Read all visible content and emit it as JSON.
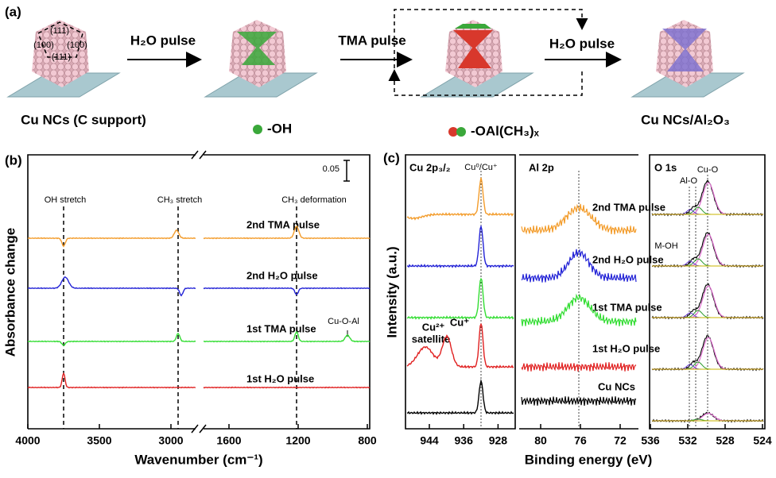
{
  "panel_a": {
    "label": "(a)",
    "facet_labels": [
      "(111)",
      "(100)",
      "(100)",
      "(111)"
    ],
    "arrow_labels": [
      "H₂O pulse",
      "TMA pulse",
      "H₂O pulse"
    ],
    "captions": [
      "Cu NCs (C support)",
      "-OH",
      "-OAl(CH₃)ₓ",
      "Cu NCs/Al₂O₃"
    ]
  },
  "panel_b": {
    "label": "(b)",
    "y_axis_label": "Absorbance change",
    "x_axis_label": "Wavenumber (cm⁻¹)",
    "xticks": [
      4000,
      3500,
      3000,
      1600,
      1200,
      800
    ],
    "scale_bar": "0.05",
    "annotations": [
      "OH stretch",
      "CH₃ stretch",
      "CH₃ deformation",
      "Cu-O-Al"
    ],
    "trace_labels": [
      "2nd TMA pulse",
      "2nd H₂O pulse",
      "1st TMA pulse",
      "1st H₂O pulse"
    ]
  },
  "panel_c": {
    "label": "(c)",
    "y_axis_label": "Intensity (a.u.)",
    "x_axis_label": "Binding energy (eV)",
    "subplots": [
      {
        "title": "Cu 2p₃/₂",
        "xticks": [
          944,
          936,
          928
        ],
        "annotations": [
          "Cu⁰/Cu⁺",
          "Cu²⁺",
          "satellite",
          "Cu⁺"
        ]
      },
      {
        "title": "Al 2p",
        "xticks": [
          80,
          76,
          72
        ],
        "trace_labels": [
          "2nd TMA pulse",
          "2nd H₂O pulse",
          "1st TMA pulse",
          "1st H₂O pulse",
          "Cu NCs"
        ]
      },
      {
        "title": "O 1s",
        "xticks": [
          536,
          532,
          528,
          524
        ],
        "annotations": [
          "Cu-O",
          "Al-O",
          "M-OH"
        ]
      }
    ]
  }
}
